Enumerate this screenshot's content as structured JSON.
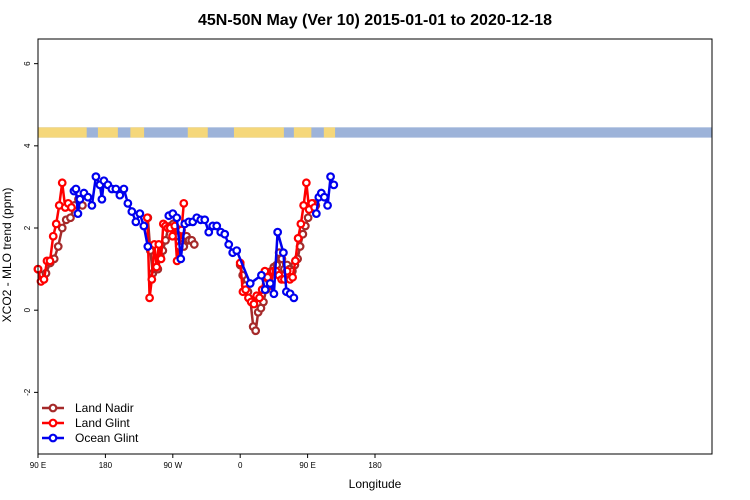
{
  "chart_data": {
    "type": "line",
    "title": "45N-50N May (Ver 10)   2015-01-01 to 2020-12-18",
    "xlabel": "Longitude",
    "ylabel": "XCO2 - MLO trend (ppm)",
    "xlim": [
      -90,
      180
    ],
    "ylim": [
      -3.5,
      6.6
    ],
    "x_ticks": [
      {
        "value": -90,
        "label": "90 E"
      },
      {
        "value": -63,
        "label": "180"
      },
      {
        "value": -36,
        "label": "90 W"
      },
      {
        "value": -9,
        "label": "0"
      },
      {
        "value": 18,
        "label": "90 E"
      },
      {
        "value": 45,
        "label": "180"
      }
    ],
    "y_ticks": [
      -2,
      0,
      2,
      4,
      6
    ],
    "land_ocean_strip": {
      "y_range": [
        4.2,
        4.45
      ],
      "land_color": "#f5d77a",
      "ocean_color": "#9db3d9"
    },
    "legend": {
      "position": "bottom-left",
      "entries": [
        "Land Nadir",
        "Land Glint",
        "Ocean Glint"
      ]
    },
    "series": [
      {
        "name": "Land Nadir",
        "color": "#a52a2a",
        "points": [
          [
            -90.0,
            1.0
          ],
          [
            -88.4,
            0.85
          ],
          [
            -86.8,
            0.9
          ],
          [
            -85.1,
            1.15
          ],
          [
            -83.5,
            1.25
          ],
          [
            -81.9,
            1.55
          ],
          [
            -80.3,
            2.0
          ],
          [
            -78.7,
            2.2
          ],
          [
            -77.0,
            2.25
          ],
          [
            -75.4,
            2.55
          ],
          [
            -73.8,
            2.7
          ],
          [
            -72.2,
            2.55
          ],
          [
            -46.0,
            2.25
          ],
          [
            -45.0,
            1.45
          ],
          [
            -44.0,
            0.9
          ],
          [
            -43.0,
            1.0
          ],
          [
            -42.0,
            1.0
          ],
          [
            -41.0,
            1.3
          ],
          [
            -40.0,
            1.45
          ],
          [
            -38.9,
            1.7
          ],
          [
            -37.9,
            2.0
          ],
          [
            -36.8,
            2.05
          ],
          [
            -35.8,
            2.1
          ],
          [
            -34.7,
            2.0
          ],
          [
            -33.7,
            1.8
          ],
          [
            -32.6,
            1.6
          ],
          [
            -31.6,
            1.55
          ],
          [
            -30.5,
            1.8
          ],
          [
            -29.5,
            1.7
          ],
          [
            -28.4,
            1.7
          ],
          [
            -27.4,
            1.6
          ],
          [
            -9.0,
            1.1
          ],
          [
            -8.0,
            0.85
          ],
          [
            -7.0,
            0.6
          ],
          [
            -5.9,
            0.45
          ],
          [
            -4.9,
            0.25
          ],
          [
            -3.8,
            -0.4
          ],
          [
            -2.8,
            -0.5
          ],
          [
            -1.8,
            -0.05
          ],
          [
            -0.7,
            0.05
          ],
          [
            0.3,
            0.2
          ],
          [
            1.4,
            0.5
          ],
          [
            2.4,
            0.75
          ],
          [
            3.5,
            0.95
          ],
          [
            4.5,
            1.05
          ],
          [
            5.6,
            1.1
          ],
          [
            6.6,
            1.4
          ],
          [
            7.7,
            1.25
          ],
          [
            8.7,
            1.0
          ],
          [
            9.8,
            1.1
          ],
          [
            10.8,
            1.0
          ],
          [
            11.9,
            0.95
          ],
          [
            12.9,
            1.1
          ],
          [
            14.0,
            1.25
          ],
          [
            15.0,
            1.55
          ],
          [
            16.1,
            1.85
          ],
          [
            17.1,
            2.05
          ],
          [
            18.2,
            2.25
          ],
          [
            19.2,
            2.55
          ],
          [
            20.3,
            2.6
          ],
          [
            21.3,
            2.55
          ]
        ]
      },
      {
        "name": "Land Glint",
        "color": "#ff0000",
        "points": [
          [
            -90.0,
            1.0
          ],
          [
            -88.8,
            0.7
          ],
          [
            -87.6,
            0.75
          ],
          [
            -86.4,
            1.2
          ],
          [
            -85.2,
            1.2
          ],
          [
            -83.9,
            1.8
          ],
          [
            -82.7,
            2.1
          ],
          [
            -81.5,
            2.55
          ],
          [
            -80.3,
            3.1
          ],
          [
            -79.1,
            2.5
          ],
          [
            -77.9,
            2.6
          ],
          [
            -76.6,
            2.5
          ],
          [
            -46.2,
            2.25
          ],
          [
            -45.3,
            0.3
          ],
          [
            -44.4,
            0.75
          ],
          [
            -43.4,
            1.6
          ],
          [
            -42.5,
            1.05
          ],
          [
            -41.6,
            1.6
          ],
          [
            -40.7,
            1.25
          ],
          [
            -39.8,
            2.1
          ],
          [
            -38.9,
            2.05
          ],
          [
            -38.0,
            2.0
          ],
          [
            -37.0,
            2.0
          ],
          [
            -36.1,
            1.8
          ],
          [
            -35.2,
            2.05
          ],
          [
            -34.3,
            1.2
          ],
          [
            -33.4,
            1.55
          ],
          [
            -32.5,
            1.95
          ],
          [
            -31.6,
            2.6
          ],
          [
            -9.0,
            1.15
          ],
          [
            -7.9,
            0.45
          ],
          [
            -6.8,
            0.5
          ],
          [
            -5.7,
            0.3
          ],
          [
            -4.6,
            0.2
          ],
          [
            -3.5,
            0.15
          ],
          [
            -2.4,
            0.35
          ],
          [
            -1.3,
            0.3
          ],
          [
            -0.2,
            0.5
          ],
          [
            0.9,
            0.95
          ],
          [
            2.0,
            0.8
          ],
          [
            3.2,
            0.6
          ],
          [
            4.3,
            0.95
          ],
          [
            5.4,
            0.95
          ],
          [
            6.5,
            0.85
          ],
          [
            7.6,
            0.75
          ],
          [
            8.7,
            0.75
          ],
          [
            9.8,
            0.95
          ],
          [
            10.9,
            0.75
          ],
          [
            12.0,
            0.8
          ],
          [
            13.1,
            1.2
          ],
          [
            14.2,
            1.75
          ],
          [
            15.3,
            2.1
          ],
          [
            16.4,
            2.55
          ],
          [
            17.5,
            3.1
          ],
          [
            18.6,
            2.45
          ],
          [
            19.7,
            2.6
          ],
          [
            20.8,
            2.5
          ]
        ]
      },
      {
        "name": "Ocean Glint",
        "color": "#0000ee",
        "points": [
          [
            -75.6,
            2.9
          ],
          [
            -74.8,
            2.95
          ],
          [
            -74.0,
            2.35
          ],
          [
            -73.2,
            2.7
          ],
          [
            -71.6,
            2.85
          ],
          [
            -70.0,
            2.75
          ],
          [
            -68.4,
            2.55
          ],
          [
            -66.8,
            3.25
          ],
          [
            -65.2,
            3.05
          ],
          [
            -64.4,
            2.7
          ],
          [
            -63.6,
            3.15
          ],
          [
            -62.0,
            3.05
          ],
          [
            -60.4,
            2.95
          ],
          [
            -58.8,
            2.95
          ],
          [
            -57.2,
            2.8
          ],
          [
            -55.6,
            2.95
          ],
          [
            -54.0,
            2.6
          ],
          [
            -52.4,
            2.4
          ],
          [
            -50.8,
            2.15
          ],
          [
            -49.2,
            2.35
          ],
          [
            -47.6,
            2.05
          ],
          [
            -46.0,
            1.55
          ],
          [
            -37.6,
            2.3
          ],
          [
            -36.0,
            2.35
          ],
          [
            -34.4,
            2.25
          ],
          [
            -32.8,
            1.25
          ],
          [
            -31.2,
            2.1
          ],
          [
            -29.6,
            2.15
          ],
          [
            -28.0,
            2.15
          ],
          [
            -26.4,
            2.25
          ],
          [
            -24.8,
            2.2
          ],
          [
            -23.2,
            2.2
          ],
          [
            -21.6,
            1.9
          ],
          [
            -20.0,
            2.05
          ],
          [
            -18.4,
            2.05
          ],
          [
            -16.8,
            1.9
          ],
          [
            -15.2,
            1.85
          ],
          [
            -13.6,
            1.6
          ],
          [
            -12.0,
            1.4
          ],
          [
            -10.4,
            1.45
          ],
          [
            -5.0,
            0.65
          ],
          [
            -0.5,
            0.85
          ],
          [
            1.0,
            0.5
          ],
          [
            3.0,
            0.65
          ],
          [
            4.5,
            0.4
          ],
          [
            6.0,
            1.9
          ],
          [
            8.3,
            1.4
          ],
          [
            9.5,
            0.45
          ],
          [
            11.0,
            0.4
          ],
          [
            12.5,
            0.3
          ],
          [
            21.5,
            2.35
          ],
          [
            22.5,
            2.75
          ],
          [
            23.5,
            2.85
          ],
          [
            24.7,
            2.75
          ],
          [
            26.0,
            2.55
          ],
          [
            27.2,
            3.25
          ],
          [
            28.5,
            3.05
          ]
        ]
      }
    ]
  }
}
